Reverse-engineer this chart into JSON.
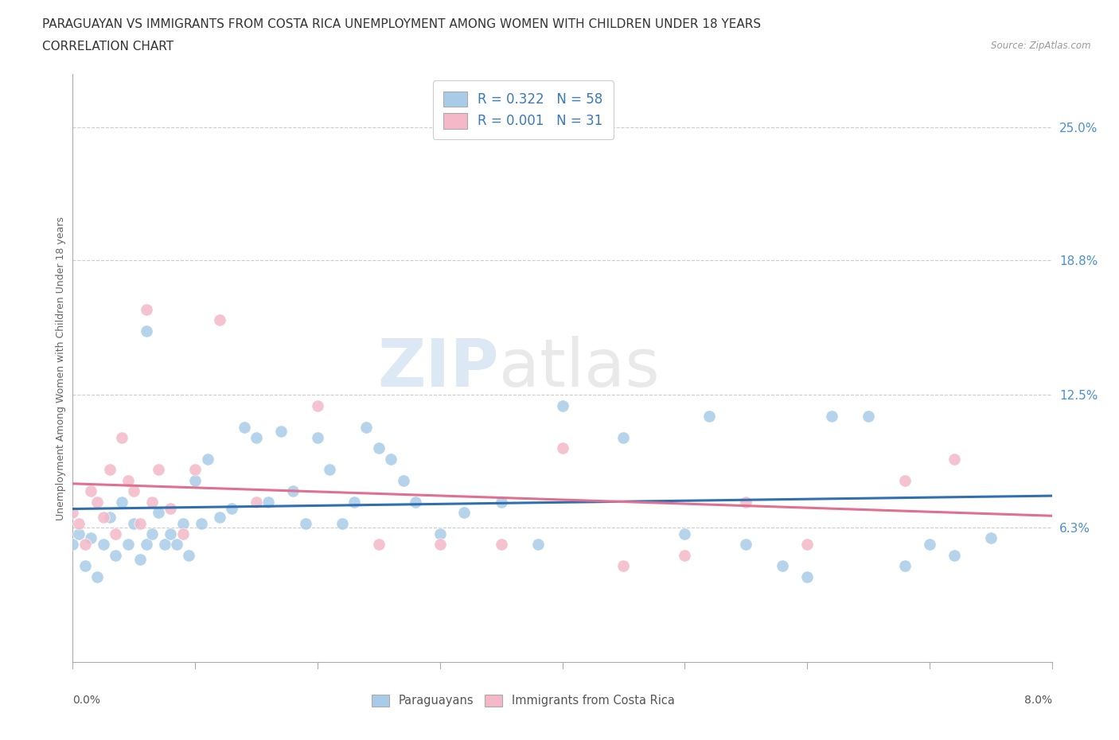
{
  "title_line1": "PARAGUAYAN VS IMMIGRANTS FROM COSTA RICA UNEMPLOYMENT AMONG WOMEN WITH CHILDREN UNDER 18 YEARS",
  "title_line2": "CORRELATION CHART",
  "source_text": "Source: ZipAtlas.com",
  "xlabel_bottom_left": "0.0%",
  "xlabel_bottom_right": "8.0%",
  "ylabel_ticks": [
    6.3,
    12.5,
    18.8,
    25.0
  ],
  "ylabel_label": "Unemployment Among Women with Children Under 18 years",
  "xmin": 0.0,
  "xmax": 8.0,
  "ymin": 0.0,
  "ymax": 27.5,
  "legend_r1": "R = 0.322",
  "legend_n1": "N = 58",
  "legend_r2": "R = 0.001",
  "legend_n2": "N = 31",
  "color_blue": "#a8cce8",
  "color_pink": "#f4b8c8",
  "color_blue_line": "#3070b0",
  "color_pink_line": "#e07090",
  "watermark_zip": "ZIP",
  "watermark_atlas": "atlas",
  "paraguayan_x": [
    0.0,
    0.05,
    0.1,
    0.15,
    0.2,
    0.25,
    0.3,
    0.35,
    0.4,
    0.45,
    0.5,
    0.55,
    0.6,
    0.65,
    0.7,
    0.75,
    0.8,
    0.85,
    0.9,
    0.95,
    1.0,
    1.05,
    1.1,
    1.2,
    1.3,
    1.4,
    1.5,
    1.6,
    1.7,
    1.8,
    1.9,
    2.0,
    2.1,
    2.2,
    2.3,
    2.4,
    2.5,
    2.6,
    2.7,
    2.8,
    3.0,
    3.2,
    3.5,
    3.8,
    4.0,
    4.5,
    5.0,
    5.2,
    5.5,
    5.8,
    6.0,
    6.2,
    6.5,
    6.8,
    7.0,
    7.2,
    7.5,
    0.6
  ],
  "paraguayan_y": [
    5.5,
    6.0,
    4.5,
    5.8,
    4.0,
    5.5,
    6.8,
    5.0,
    7.5,
    5.5,
    6.5,
    4.8,
    5.5,
    6.0,
    7.0,
    5.5,
    6.0,
    5.5,
    6.5,
    5.0,
    8.5,
    6.5,
    9.5,
    6.8,
    7.2,
    11.0,
    10.5,
    7.5,
    10.8,
    8.0,
    6.5,
    10.5,
    9.0,
    6.5,
    7.5,
    11.0,
    10.0,
    9.5,
    8.5,
    7.5,
    6.0,
    7.0,
    7.5,
    5.5,
    12.0,
    10.5,
    6.0,
    11.5,
    5.5,
    4.5,
    4.0,
    11.5,
    11.5,
    4.5,
    5.5,
    5.0,
    5.8,
    15.5
  ],
  "costarica_x": [
    0.0,
    0.05,
    0.1,
    0.15,
    0.2,
    0.25,
    0.3,
    0.35,
    0.4,
    0.45,
    0.5,
    0.55,
    0.6,
    0.65,
    0.7,
    0.8,
    0.9,
    1.0,
    1.2,
    1.5,
    2.0,
    2.5,
    3.0,
    3.5,
    4.0,
    4.5,
    5.0,
    5.5,
    6.0,
    6.8,
    7.2
  ],
  "costarica_y": [
    7.0,
    6.5,
    5.5,
    8.0,
    7.5,
    6.8,
    9.0,
    6.0,
    10.5,
    8.5,
    8.0,
    6.5,
    16.5,
    7.5,
    9.0,
    7.2,
    6.0,
    9.0,
    16.0,
    7.5,
    12.0,
    5.5,
    5.5,
    5.5,
    10.0,
    4.5,
    5.0,
    7.5,
    5.5,
    8.5,
    9.5
  ]
}
